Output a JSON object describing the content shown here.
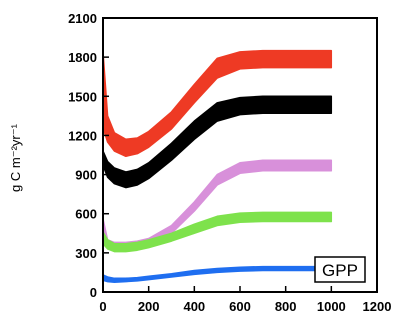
{
  "chart_data": {
    "type": "line",
    "ylabel": "g C m⁻²yr⁻¹",
    "legend_label": "GPP",
    "xlim": [
      0,
      1200
    ],
    "ylim": [
      0,
      2100
    ],
    "xticks": [
      0,
      200,
      400,
      600,
      800,
      1000,
      1200
    ],
    "yticks": [
      0,
      300,
      600,
      900,
      1200,
      1500,
      1800,
      2100
    ],
    "grid": false,
    "series": [
      {
        "color": "#ee3a24",
        "x": [
          0,
          20,
          50,
          100,
          150,
          200,
          300,
          400,
          500,
          600,
          700,
          800,
          900,
          1000
        ],
        "low": [
          1260,
          1150,
          1080,
          1040,
          1060,
          1110,
          1250,
          1450,
          1640,
          1710,
          1720,
          1720,
          1720,
          1720
        ],
        "high": [
          1840,
          1350,
          1220,
          1170,
          1180,
          1230,
          1380,
          1590,
          1790,
          1840,
          1850,
          1850,
          1850,
          1850
        ]
      },
      {
        "color": "#000000",
        "x": [
          0,
          20,
          50,
          100,
          150,
          200,
          300,
          400,
          500,
          600,
          700,
          800,
          900,
          1000
        ],
        "low": [
          970,
          880,
          830,
          800,
          820,
          870,
          1010,
          1170,
          1310,
          1360,
          1370,
          1370,
          1370,
          1370
        ],
        "high": [
          1080,
          1000,
          950,
          920,
          940,
          990,
          1140,
          1310,
          1450,
          1490,
          1500,
          1500,
          1500,
          1500
        ]
      },
      {
        "color": "#d890da",
        "x": [
          0,
          20,
          50,
          100,
          150,
          200,
          300,
          400,
          500,
          600,
          700,
          800,
          900,
          1000
        ],
        "low": [
          400,
          340,
          320,
          320,
          330,
          350,
          450,
          620,
          820,
          910,
          930,
          930,
          930,
          930
        ],
        "high": [
          560,
          400,
          380,
          380,
          390,
          410,
          510,
          690,
          900,
          990,
          1010,
          1010,
          1010,
          1010
        ]
      },
      {
        "color": "#7ee24c",
        "x": [
          0,
          20,
          50,
          100,
          150,
          200,
          300,
          400,
          500,
          600,
          700,
          800,
          900,
          1000
        ],
        "low": [
          370,
          330,
          310,
          310,
          320,
          340,
          390,
          450,
          510,
          535,
          540,
          540,
          540,
          540
        ],
        "high": [
          460,
          400,
          370,
          370,
          380,
          400,
          450,
          520,
          580,
          605,
          610,
          610,
          610,
          610
        ]
      },
      {
        "color": "#1f6ef0",
        "x": [
          0,
          20,
          50,
          100,
          150,
          200,
          300,
          400,
          500,
          600,
          700,
          800,
          900,
          1000
        ],
        "low": [
          90,
          80,
          75,
          80,
          85,
          95,
          115,
          135,
          150,
          160,
          165,
          165,
          165,
          165
        ],
        "high": [
          130,
          115,
          105,
          105,
          110,
          120,
          140,
          165,
          180,
          190,
          195,
          195,
          195,
          195
        ]
      }
    ]
  }
}
